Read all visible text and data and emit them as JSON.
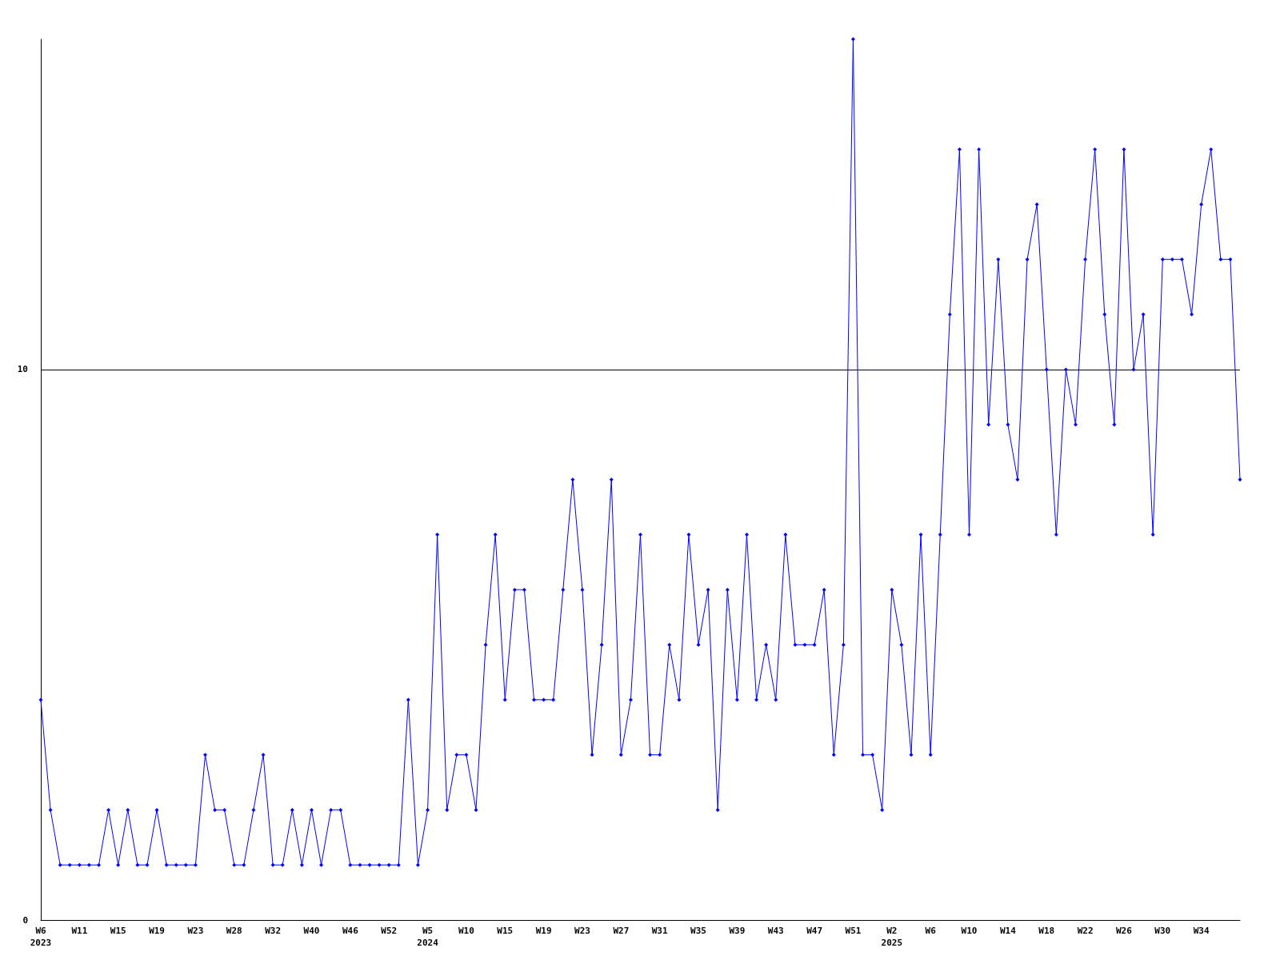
{
  "chart_data": {
    "type": "line",
    "categories": [
      "W6\n2023",
      null,
      null,
      null,
      "W11",
      null,
      null,
      null,
      "W15",
      null,
      null,
      null,
      "W19",
      null,
      null,
      null,
      "W23",
      null,
      null,
      null,
      "W28",
      null,
      null,
      null,
      "W32",
      null,
      null,
      null,
      "W40",
      null,
      null,
      null,
      "W46",
      null,
      null,
      null,
      "W52",
      null,
      null,
      null,
      "W5\n2024",
      null,
      null,
      null,
      "W10",
      null,
      null,
      null,
      "W15",
      null,
      null,
      null,
      "W19",
      null,
      null,
      null,
      "W23",
      null,
      null,
      null,
      "W27",
      null,
      null,
      null,
      "W31",
      null,
      null,
      null,
      "W35",
      null,
      null,
      null,
      "W39",
      null,
      null,
      null,
      "W43",
      null,
      null,
      null,
      "W47",
      null,
      null,
      null,
      "W51",
      null,
      null,
      null,
      "W2\n2025",
      null,
      null,
      null,
      "W6",
      null,
      null,
      null,
      "W10",
      null,
      null,
      null,
      "W14",
      null,
      null,
      null,
      "W18",
      null,
      null,
      null,
      "W22",
      null,
      null,
      null,
      "W26",
      null,
      null,
      null,
      "W30",
      null,
      null,
      null,
      "W34",
      null,
      null,
      null,
      null
    ],
    "series": [
      {
        "color": "#0000ff",
        "values": [
          4,
          2,
          1,
          1,
          1,
          1,
          1,
          2,
          1,
          2,
          1,
          1,
          2,
          1,
          1,
          1,
          1,
          3,
          2,
          2,
          1,
          1,
          2,
          3,
          1,
          1,
          2,
          1,
          2,
          1,
          2,
          2,
          1,
          1,
          1,
          1,
          1,
          1,
          4,
          1,
          2,
          7,
          2,
          3,
          3,
          2,
          5,
          7,
          4,
          6,
          6,
          4,
          4,
          4,
          6,
          8,
          6,
          3,
          5,
          8,
          3,
          4,
          7,
          3,
          3,
          5,
          4,
          7,
          5,
          6,
          2,
          6,
          4,
          7,
          4,
          5,
          4,
          7,
          5,
          5,
          5,
          6,
          3,
          5,
          16,
          3,
          3,
          2,
          6,
          5,
          3,
          7,
          3,
          7,
          11,
          14,
          7,
          14,
          9,
          12,
          9,
          8,
          12,
          13,
          10,
          7,
          10,
          9,
          12,
          14,
          11,
          9,
          14,
          10,
          11,
          7,
          12,
          12,
          12,
          11,
          13,
          14,
          12,
          12,
          8
        ]
      }
    ],
    "ylim": [
      0,
      16
    ],
    "yticks": [
      0,
      10
    ],
    "grid": "y",
    "marker": "diamond",
    "line_style": "solid"
  }
}
